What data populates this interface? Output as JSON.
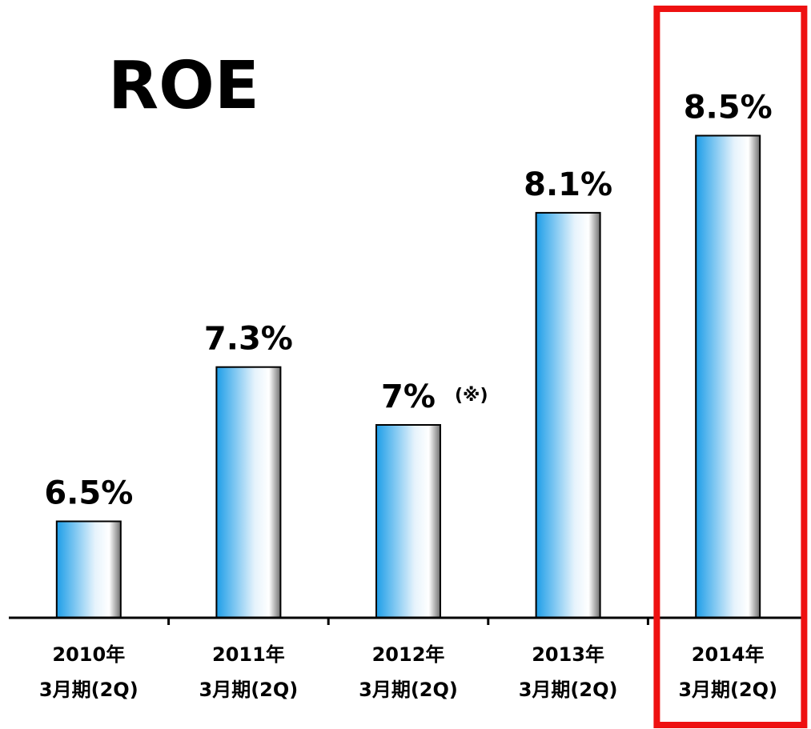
{
  "chart_data": {
    "type": "bar",
    "title": "ROE",
    "categories": [
      [
        "2010年",
        "3月期(2Q)"
      ],
      [
        "2011年",
        "3月期(2Q)"
      ],
      [
        "2012年",
        "3月期(2Q)"
      ],
      [
        "2013年",
        "3月期(2Q)"
      ],
      [
        "2014年",
        "3月期(2Q)"
      ]
    ],
    "values": [
      6.5,
      7.3,
      7,
      8.1,
      8.5
    ],
    "value_labels": [
      "6.5%",
      "7.3%",
      "7%",
      "8.1%",
      "8.5%"
    ],
    "annotation": "(※)",
    "annotation_color": "#ee1111",
    "color": "#1e9ee8",
    "ylim": [
      6,
      9
    ],
    "highlight_index": 4,
    "highlight_color": "#ee1111"
  }
}
